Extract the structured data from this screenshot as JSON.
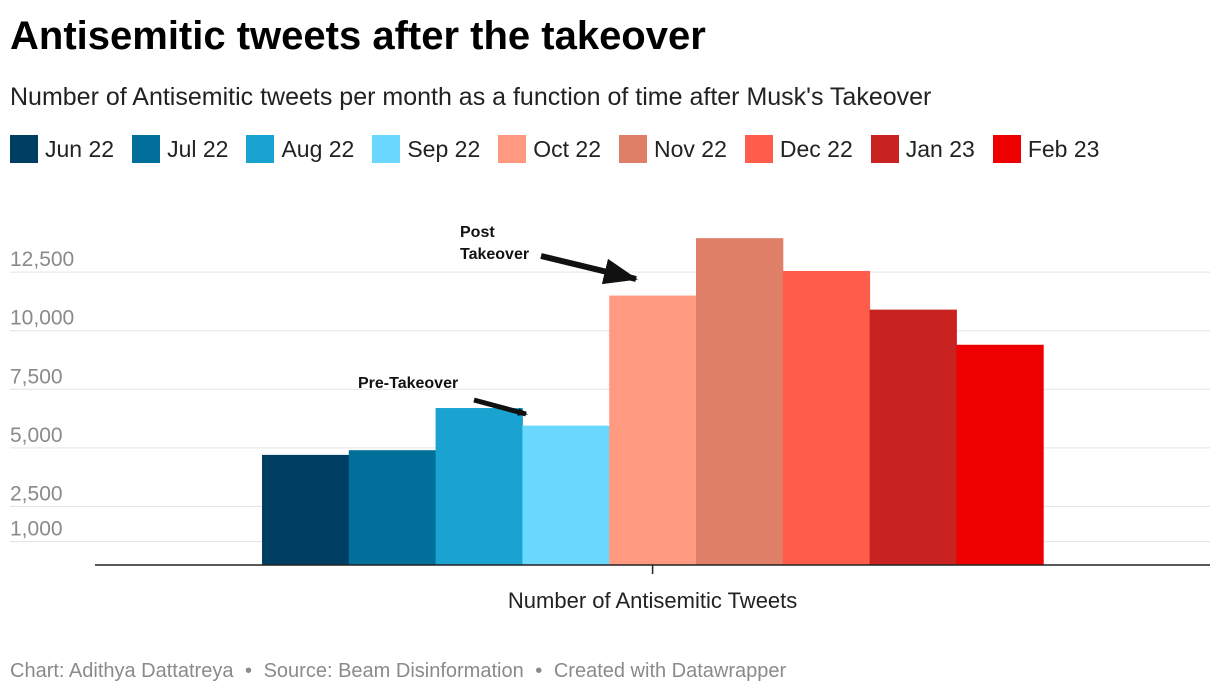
{
  "header": {
    "title": "Antisemitic tweets after the takeover",
    "subtitle": "Number of Antisemitic tweets per month as a function of time after Musk's Takeover"
  },
  "footer": {
    "chart_credit": "Chart: Adithya Dattatreya",
    "source": "Source: Beam Disinformation",
    "created_with": "Created with Datawrapper",
    "separator": "•"
  },
  "chart_data": {
    "type": "bar",
    "title": "Antisemitic tweets after the takeover",
    "subtitle": "Number of Antisemitic tweets per month as a function of time after Musk's Takeover",
    "categories": [
      "Number of Antisemitic Tweets"
    ],
    "xlabel": "",
    "ylabel": "",
    "ylim": [
      0,
      14000
    ],
    "yticks": [
      1000,
      2500,
      5000,
      7500,
      10000,
      12500
    ],
    "ytick_labels": [
      "1,000",
      "2,500",
      "5,000",
      "7,500",
      "10,000",
      "12,500"
    ],
    "grid": true,
    "legend_position": "top",
    "series": [
      {
        "name": "Jun 22",
        "values": [
          4700
        ],
        "color": "#003f63"
      },
      {
        "name": "Jul 22",
        "values": [
          4900
        ],
        "color": "#006f9a"
      },
      {
        "name": "Aug 22",
        "values": [
          6700
        ],
        "color": "#1aa3d1"
      },
      {
        "name": "Sep 22",
        "values": [
          5950
        ],
        "color": "#6ad7ff"
      },
      {
        "name": "Oct 22",
        "values": [
          11500
        ],
        "color": "#ff9a80"
      },
      {
        "name": "Nov 22",
        "values": [
          13950
        ],
        "color": "#e07f68"
      },
      {
        "name": "Dec 22",
        "values": [
          12550
        ],
        "color": "#ff5c4b"
      },
      {
        "name": "Jan 23",
        "values": [
          10900
        ],
        "color": "#c82221"
      },
      {
        "name": "Feb 23",
        "values": [
          9400
        ],
        "color": "#ee0000"
      }
    ],
    "annotations": [
      {
        "text": "Pre-Takeover",
        "points_to": "Sep 22"
      },
      {
        "text_lines": [
          "Post",
          "Takeover"
        ],
        "points_to": "Oct 22"
      }
    ]
  }
}
